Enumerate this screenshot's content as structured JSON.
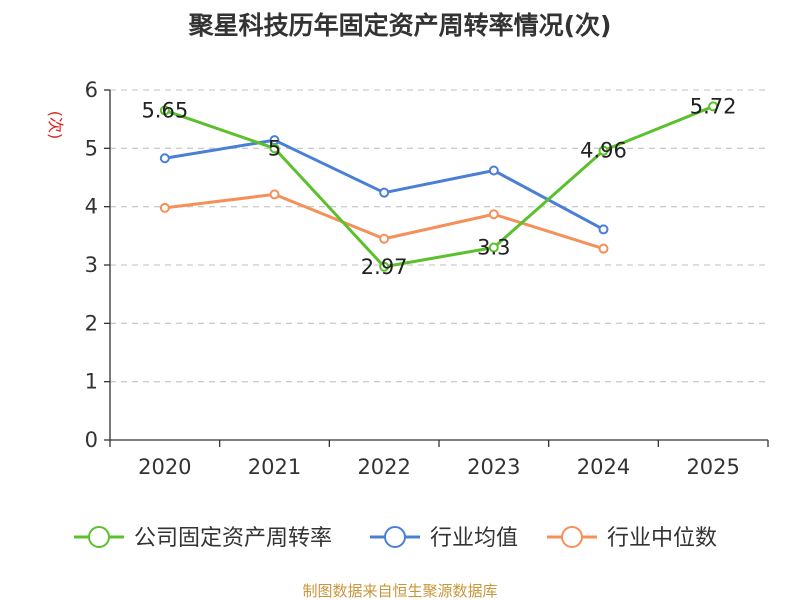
{
  "chart_data": {
    "type": "line",
    "title": "聚星科技历年固定资产周转率情况(次)",
    "ylabel": "(次)",
    "xlabel": "",
    "categories": [
      "2020",
      "2021",
      "2022",
      "2023",
      "2024",
      "2025"
    ],
    "ylim": [
      0,
      6
    ],
    "yticks": [
      0,
      1,
      2,
      3,
      4,
      5,
      6
    ],
    "grid": true,
    "legend_position": "bottom",
    "series": [
      {
        "name": "公司固定资产周转率",
        "color": "#5cc02e",
        "values": [
          5.65,
          5,
          2.97,
          3.3,
          4.96,
          5.72
        ],
        "labels": [
          "5.65",
          "5",
          "2.97",
          "3.3",
          "4.96",
          "5.72"
        ],
        "show_labels": true
      },
      {
        "name": "行业均值",
        "color": "#4a7fd6",
        "values": [
          4.83,
          5.14,
          4.24,
          4.62,
          3.61,
          null
        ],
        "show_labels": false
      },
      {
        "name": "行业中位数",
        "color": "#f5905a",
        "values": [
          3.98,
          4.21,
          3.45,
          3.87,
          3.28,
          null
        ],
        "show_labels": false
      }
    ],
    "source": "制图数据来自恒生聚源数据库",
    "colors": {
      "title": "#333333",
      "ylabel": "#e0211d",
      "source": "#c9963a",
      "grid": "#cccccc",
      "axis": "#333333"
    }
  }
}
